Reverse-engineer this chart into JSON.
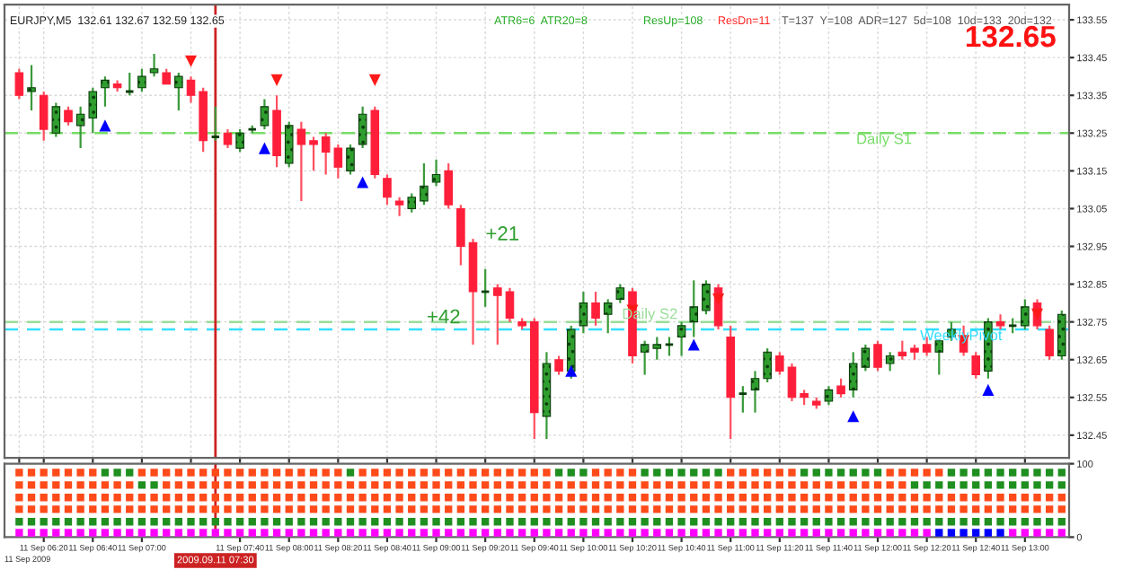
{
  "chart_data": [
    {
      "type": "candlestick",
      "x": [
        "2009-09-11T06:10",
        "2009-09-11T06:15",
        "2009-09-11T06:20",
        "2009-09-11T06:25",
        "2009-09-11T06:30",
        "2009-09-11T06:35",
        "2009-09-11T06:40",
        "2009-09-11T06:45",
        "2009-09-11T06:50",
        "2009-09-11T06:55",
        "2009-09-11T07:00",
        "2009-09-11T07:05",
        "2009-09-11T07:10",
        "2009-09-11T07:15",
        "2009-09-11T07:20",
        "2009-09-11T07:25",
        "2009-09-11T07:30",
        "2009-09-11T07:35",
        "2009-09-11T07:40",
        "2009-09-11T07:45",
        "2009-09-11T07:50",
        "2009-09-11T07:55",
        "2009-09-11T08:00",
        "2009-09-11T08:05",
        "2009-09-11T08:10",
        "2009-09-11T08:15",
        "2009-09-11T08:20",
        "2009-09-11T08:25",
        "2009-09-11T08:30",
        "2009-09-11T08:35",
        "2009-09-11T08:40",
        "2009-09-11T08:45",
        "2009-09-11T08:50",
        "2009-09-11T08:55",
        "2009-09-11T09:00",
        "2009-09-11T09:05",
        "2009-09-11T09:10",
        "2009-09-11T09:15",
        "2009-09-11T09:20",
        "2009-09-11T09:25",
        "2009-09-11T09:30",
        "2009-09-11T09:35",
        "2009-09-11T09:40",
        "2009-09-11T09:45",
        "2009-09-11T09:50",
        "2009-09-11T09:55",
        "2009-09-11T10:00",
        "2009-09-11T10:05",
        "2009-09-11T10:10",
        "2009-09-11T10:15",
        "2009-09-11T10:20",
        "2009-09-11T10:25",
        "2009-09-11T10:30",
        "2009-09-11T10:35",
        "2009-09-11T10:40",
        "2009-09-11T10:45",
        "2009-09-11T10:50",
        "2009-09-11T10:55",
        "2009-09-11T11:00",
        "2009-09-11T11:05",
        "2009-09-11T11:10",
        "2009-09-11T11:15",
        "2009-09-11T11:20",
        "2009-09-11T11:25",
        "2009-09-11T11:30",
        "2009-09-11T11:35",
        "2009-09-11T11:40",
        "2009-09-11T11:45",
        "2009-09-11T11:50",
        "2009-09-11T11:55",
        "2009-09-11T12:00",
        "2009-09-11T12:05",
        "2009-09-11T12:10",
        "2009-09-11T12:15",
        "2009-09-11T12:20",
        "2009-09-11T12:25",
        "2009-09-11T12:30",
        "2009-09-11T12:35",
        "2009-09-11T12:40",
        "2009-09-11T12:45",
        "2009-09-11T12:50",
        "2009-09-11T12:55",
        "2009-09-11T13:00",
        "2009-09-11T13:05",
        "2009-09-11T13:10",
        "2009-09-11T13:15"
      ],
      "ohlc": [
        [
          133.41,
          133.42,
          133.34,
          133.35
        ],
        [
          133.36,
          133.43,
          133.31,
          133.37
        ],
        [
          133.35,
          133.36,
          133.23,
          133.26
        ],
        [
          133.25,
          133.33,
          133.24,
          133.32
        ],
        [
          133.31,
          133.32,
          133.27,
          133.28
        ],
        [
          133.27,
          133.32,
          133.21,
          133.3
        ],
        [
          133.29,
          133.37,
          133.25,
          133.36
        ],
        [
          133.37,
          133.4,
          133.32,
          133.39
        ],
        [
          133.38,
          133.39,
          133.36,
          133.37
        ],
        [
          133.36,
          133.41,
          133.35,
          133.36
        ],
        [
          133.37,
          133.42,
          133.36,
          133.4
        ],
        [
          133.41,
          133.46,
          133.4,
          133.42
        ],
        [
          133.41,
          133.42,
          133.38,
          133.38
        ],
        [
          133.37,
          133.41,
          133.31,
          133.4
        ],
        [
          133.39,
          133.4,
          133.33,
          133.35
        ],
        [
          133.36,
          133.37,
          133.2,
          133.23
        ],
        [
          133.24,
          133.32,
          133.23,
          133.24
        ],
        [
          133.25,
          133.26,
          133.21,
          133.22
        ],
        [
          133.21,
          133.26,
          133.2,
          133.25
        ],
        [
          133.26,
          133.27,
          133.25,
          133.26
        ],
        [
          133.27,
          133.34,
          133.26,
          133.32
        ],
        [
          133.31,
          133.35,
          133.16,
          133.19
        ],
        [
          133.17,
          133.28,
          133.16,
          133.27
        ],
        [
          133.26,
          133.28,
          133.07,
          133.22
        ],
        [
          133.23,
          133.24,
          133.15,
          133.22
        ],
        [
          133.24,
          133.25,
          133.14,
          133.2
        ],
        [
          133.21,
          133.22,
          133.13,
          133.16
        ],
        [
          133.15,
          133.22,
          133.14,
          133.21
        ],
        [
          133.22,
          133.32,
          133.21,
          133.3
        ],
        [
          133.31,
          133.32,
          133.13,
          133.14
        ],
        [
          133.13,
          133.14,
          133.06,
          133.08
        ],
        [
          133.07,
          133.08,
          133.03,
          133.06
        ],
        [
          133.05,
          133.09,
          133.04,
          133.08
        ],
        [
          133.07,
          133.17,
          133.06,
          133.11
        ],
        [
          133.12,
          133.18,
          133.11,
          133.14
        ],
        [
          133.15,
          133.17,
          133.05,
          133.06
        ],
        [
          133.05,
          133.06,
          132.9,
          132.95
        ],
        [
          132.96,
          132.97,
          132.69,
          132.83
        ],
        [
          132.83,
          132.89,
          132.79,
          132.83
        ],
        [
          132.84,
          132.85,
          132.69,
          132.82
        ],
        [
          132.83,
          132.84,
          132.75,
          132.76
        ],
        [
          132.75,
          132.76,
          132.73,
          132.74
        ],
        [
          132.75,
          132.76,
          132.44,
          132.51
        ],
        [
          132.5,
          132.67,
          132.44,
          132.64
        ],
        [
          132.65,
          132.66,
          132.61,
          132.62
        ],
        [
          132.62,
          132.74,
          132.6,
          132.73
        ],
        [
          132.74,
          132.83,
          132.72,
          132.8
        ],
        [
          132.8,
          132.83,
          132.74,
          132.76
        ],
        [
          132.77,
          132.81,
          132.72,
          132.8
        ],
        [
          132.81,
          132.85,
          132.8,
          132.84
        ],
        [
          132.83,
          132.84,
          132.64,
          132.66
        ],
        [
          132.67,
          132.7,
          132.61,
          132.69
        ],
        [
          132.68,
          132.71,
          132.65,
          132.69
        ],
        [
          132.69,
          132.71,
          132.66,
          132.69
        ],
        [
          132.71,
          132.75,
          132.66,
          132.74
        ],
        [
          132.75,
          132.86,
          132.71,
          132.79
        ],
        [
          132.78,
          132.86,
          132.77,
          132.85
        ],
        [
          132.84,
          132.85,
          132.73,
          132.74
        ],
        [
          132.71,
          132.74,
          132.44,
          132.55
        ],
        [
          132.56,
          132.58,
          132.51,
          132.56
        ],
        [
          132.57,
          132.62,
          132.51,
          132.6
        ],
        [
          132.6,
          132.68,
          132.59,
          132.67
        ],
        [
          132.66,
          132.67,
          132.61,
          132.62
        ],
        [
          132.63,
          132.64,
          132.54,
          132.55
        ],
        [
          132.56,
          132.57,
          132.53,
          132.55
        ],
        [
          132.54,
          132.55,
          132.52,
          132.53
        ],
        [
          132.54,
          132.58,
          132.53,
          132.57
        ],
        [
          132.58,
          132.6,
          132.55,
          132.56
        ],
        [
          132.57,
          132.67,
          132.55,
          132.64
        ],
        [
          132.63,
          132.69,
          132.62,
          132.68
        ],
        [
          132.69,
          132.7,
          132.62,
          132.63
        ],
        [
          132.64,
          132.67,
          132.62,
          132.66
        ],
        [
          132.67,
          132.7,
          132.65,
          132.66
        ],
        [
          132.68,
          132.69,
          132.65,
          132.67
        ],
        [
          132.69,
          132.71,
          132.66,
          132.67
        ],
        [
          132.67,
          132.7,
          132.61,
          132.7
        ],
        [
          132.71,
          132.75,
          132.7,
          132.73
        ],
        [
          132.71,
          132.74,
          132.66,
          132.67
        ],
        [
          132.66,
          132.67,
          132.6,
          132.61
        ],
        [
          132.62,
          132.76,
          132.6,
          132.75
        ],
        [
          132.75,
          132.77,
          132.73,
          132.74
        ],
        [
          132.74,
          132.76,
          132.72,
          132.74
        ],
        [
          132.74,
          132.81,
          132.73,
          132.79
        ],
        [
          132.8,
          132.81,
          132.73,
          132.74
        ],
        [
          132.73,
          132.74,
          132.65,
          132.66
        ],
        [
          132.66,
          132.78,
          132.65,
          132.77
        ]
      ],
      "xlim": [
        "2009-09-11T06:04",
        "2009-09-11T13:18"
      ],
      "xticks": [
        {
          "value": "2009-09-11T06:10",
          "label": null
        },
        {
          "value": "2009-09-11T06:20",
          "label": null
        },
        {
          "value": "2009-09-11T06:40",
          "label": null
        },
        {
          "value": "2009-09-11T07:00",
          "label": null
        },
        {
          "value": "2009-09-11T07:20",
          "label": null
        },
        {
          "value": "2009-09-11T07:40",
          "label": null
        },
        {
          "value": "2009-09-11T08:00",
          "label": null
        },
        {
          "value": "2009-09-11T08:20",
          "label": null
        },
        {
          "value": "2009-09-11T08:40",
          "label": null
        },
        {
          "value": "2009-09-11T09:00",
          "label": null
        },
        {
          "value": "2009-09-11T09:20",
          "label": null
        },
        {
          "value": "2009-09-11T09:40",
          "label": null
        },
        {
          "value": "2009-09-11T10:00",
          "label": null
        },
        {
          "value": "2009-09-11T10:20",
          "label": null
        },
        {
          "value": "2009-09-11T10:40",
          "label": null
        },
        {
          "value": "2009-09-11T11:00",
          "label": null
        },
        {
          "value": "2009-09-11T11:20",
          "label": null
        },
        {
          "value": "2009-09-11T11:40",
          "label": null
        },
        {
          "value": "2009-09-11T12:00",
          "label": null
        },
        {
          "value": "2009-09-11T12:20",
          "label": null
        },
        {
          "value": "2009-09-11T12:40",
          "label": null
        },
        {
          "value": "2009-09-11T13:00",
          "label": null
        }
      ],
      "ylim": [
        132.39,
        133.59
      ],
      "yticks": [
        132.45,
        132.55,
        132.65,
        132.75,
        132.85,
        132.95,
        133.05,
        133.15,
        133.25,
        133.35,
        133.45,
        133.55
      ],
      "tick_labels": "y",
      "grid": true,
      "ref_lines": [
        {
          "axis": "y",
          "value": 133.25,
          "label": "Daily S1",
          "color": "#77dd66",
          "line_style": "dashed"
        },
        {
          "axis": "y",
          "value": 132.75,
          "label": "Daily S2",
          "color": "#99dd99",
          "line_style": "dashed"
        },
        {
          "axis": "y",
          "value": 132.73,
          "label": "WeeklyPivot",
          "color": "#33ddff",
          "line_style": "dashed"
        },
        {
          "axis": "x",
          "value": "2009-09-11T07:30",
          "label": null,
          "color": "#cc2222",
          "line_style": "solid"
        }
      ],
      "series": [
        {
          "type": "scatter",
          "marker": "triangle",
          "color": "#0000ff",
          "x": [
            "2009-09-11T06:45",
            "2009-09-11T07:50",
            "2009-09-11T08:30",
            "2009-09-11T09:55",
            "2009-09-11T10:45",
            "2009-09-11T11:50",
            "2009-09-11T12:45"
          ],
          "values": [
            133.27,
            133.21,
            133.12,
            132.62,
            132.69,
            132.5,
            132.57
          ]
        },
        {
          "type": "scatter",
          "marker": "triangle_down",
          "color": "#ff1a1a",
          "x": [
            "2009-09-11T07:20",
            "2009-09-11T07:55",
            "2009-09-11T08:35",
            "2009-09-11T10:20",
            "2009-09-11T10:55",
            "2009-09-11T12:35",
            "2009-09-11T13:05"
          ],
          "values": [
            133.44,
            133.39,
            133.39,
            132.78,
            132.81,
            132.7,
            132.77
          ]
        }
      ],
      "annotations": [
        "EURJPY,M5  132.61 132.67 132.59 132.65",
        "ATR6=6  ATR20=8",
        "ResUp=108",
        "ResDn=11",
        "T=137  Y=108  ADR=127  5d=108  10d=133  20d=132",
        "132.65",
        {
          "text": "+21",
          "x": "2009-09-11T09:15",
          "y": 132.98
        },
        {
          "text": "+42",
          "x": "2009-09-11T09:15",
          "y": 132.76
        }
      ]
    },
    {
      "type": "scatter",
      "x": [
        "2009-09-11T06:10",
        "2009-09-11T06:15",
        "2009-09-11T06:20",
        "2009-09-11T06:25",
        "2009-09-11T06:30",
        "2009-09-11T06:35",
        "2009-09-11T06:40",
        "2009-09-11T06:45",
        "2009-09-11T06:50",
        "2009-09-11T06:55",
        "2009-09-11T07:00",
        "2009-09-11T07:05",
        "2009-09-11T07:10",
        "2009-09-11T07:15",
        "2009-09-11T07:20",
        "2009-09-11T07:25",
        "2009-09-11T07:30",
        "2009-09-11T07:35",
        "2009-09-11T07:40",
        "2009-09-11T07:45",
        "2009-09-11T07:50",
        "2009-09-11T07:55",
        "2009-09-11T08:00",
        "2009-09-11T08:05",
        "2009-09-11T08:10",
        "2009-09-11T08:15",
        "2009-09-11T08:20",
        "2009-09-11T08:25",
        "2009-09-11T08:30",
        "2009-09-11T08:35",
        "2009-09-11T08:40",
        "2009-09-11T08:45",
        "2009-09-11T08:50",
        "2009-09-11T08:55",
        "2009-09-11T09:00",
        "2009-09-11T09:05",
        "2009-09-11T09:10",
        "2009-09-11T09:15",
        "2009-09-11T09:20",
        "2009-09-11T09:25",
        "2009-09-11T09:30",
        "2009-09-11T09:35",
        "2009-09-11T09:40",
        "2009-09-11T09:45",
        "2009-09-11T09:50",
        "2009-09-11T09:55",
        "2009-09-11T10:00",
        "2009-09-11T10:05",
        "2009-09-11T10:10",
        "2009-09-11T10:15",
        "2009-09-11T10:20",
        "2009-09-11T10:25",
        "2009-09-11T10:30",
        "2009-09-11T10:35",
        "2009-09-11T10:40",
        "2009-09-11T10:45",
        "2009-09-11T10:50",
        "2009-09-11T10:55",
        "2009-09-11T11:00",
        "2009-09-11T11:05",
        "2009-09-11T11:10",
        "2009-09-11T11:15",
        "2009-09-11T11:20",
        "2009-09-11T11:25",
        "2009-09-11T11:30",
        "2009-09-11T11:35",
        "2009-09-11T11:40",
        "2009-09-11T11:45",
        "2009-09-11T11:50",
        "2009-09-11T11:55",
        "2009-09-11T12:00",
        "2009-09-11T12:05",
        "2009-09-11T12:10",
        "2009-09-11T12:15",
        "2009-09-11T12:20",
        "2009-09-11T12:25",
        "2009-09-11T12:30",
        "2009-09-11T12:35",
        "2009-09-11T12:40",
        "2009-09-11T12:45",
        "2009-09-11T12:50",
        "2009-09-11T12:55",
        "2009-09-11T13:00",
        "2009-09-11T13:05",
        "2009-09-11T13:10",
        "2009-09-11T13:15"
      ],
      "xlim": [
        "2009-09-11T06:04",
        "2009-09-11T13:18"
      ],
      "annotations": [
        "11 Sep 2009"
      ],
      "xticks": [
        {
          "value": "2009-09-11T06:20",
          "label": "11 Sep 06:20"
        },
        {
          "value": "2009-09-11T06:40",
          "label": "11 Sep 06:40"
        },
        {
          "value": "2009-09-11T07:00",
          "label": "11 Sep 07:00"
        },
        {
          "value": "2009-09-11T07:40",
          "label": "11 Sep 07:40"
        },
        {
          "value": "2009-09-11T08:00",
          "label": "11 Sep 08:00"
        },
        {
          "value": "2009-09-11T08:20",
          "label": "11 Sep 08:20"
        },
        {
          "value": "2009-09-11T08:40",
          "label": "11 Sep 08:40"
        },
        {
          "value": "2009-09-11T09:00",
          "label": "11 Sep 09:00"
        },
        {
          "value": "2009-09-11T09:20",
          "label": "11 Sep 09:20"
        },
        {
          "value": "2009-09-11T09:40",
          "label": "11 Sep 09:40"
        },
        {
          "value": "2009-09-11T10:00",
          "label": "11 Sep 10:00"
        },
        {
          "value": "2009-09-11T10:20",
          "label": "11 Sep 10:20"
        },
        {
          "value": "2009-09-11T10:40",
          "label": "11 Sep 10:40"
        },
        {
          "value": "2009-09-11T11:00",
          "label": "11 Sep 11:00"
        },
        {
          "value": "2009-09-11T11:20",
          "label": "11 Sep 11:20"
        },
        {
          "value": "2009-09-11T11:40",
          "label": "11 Sep 11:40"
        },
        {
          "value": "2009-09-11T12:00",
          "label": "11 Sep 12:00"
        },
        {
          "value": "2009-09-11T12:20",
          "label": "11 Sep 12:20"
        },
        {
          "value": "2009-09-11T12:40",
          "label": "11 Sep 12:40"
        },
        {
          "value": "2009-09-11T13:00",
          "label": "11 Sep 13:00"
        }
      ],
      "ylim": [
        0,
        100
      ],
      "yticks": [
        0,
        100
      ],
      "marker": "square",
      "ref_lines": [
        {
          "axis": "x",
          "value": "2009-09-11T07:30",
          "label": "2009.09.11 07:30",
          "color": "#cc2222",
          "line_style": "solid"
        }
      ],
      "series": [
        {
          "values": [
            88,
            88,
            88,
            88,
            88,
            88,
            88,
            88,
            88,
            88,
            88,
            88,
            88,
            88,
            88,
            88,
            88,
            88,
            88,
            88,
            88,
            88,
            88,
            88,
            88,
            88,
            88,
            88,
            88,
            88,
            88,
            88,
            88,
            88,
            88,
            88,
            88,
            88,
            88,
            88,
            88,
            88,
            88,
            88,
            88,
            88,
            88,
            88,
            88,
            88,
            88,
            88,
            88,
            88,
            88,
            88,
            88,
            88,
            88,
            88,
            88,
            88,
            88,
            88,
            88,
            88,
            88,
            88,
            88,
            88,
            88,
            88,
            88,
            88,
            88,
            88,
            88,
            88,
            88,
            88,
            88,
            88,
            88,
            88,
            88,
            88
          ],
          "colors": [
            "#ff4a1a",
            "#ff4a1a",
            "#ff4a1a",
            "#ff4a1a",
            "#ff4a1a",
            "#ff4a1a",
            "#ff4a1a",
            "#1f8f1f",
            "#1f8f1f",
            "#1f8f1f",
            "#ff4a1a",
            "#ff4a1a",
            "#ff4a1a",
            "#ff4a1a",
            "#ff4a1a",
            "#ff4a1a",
            "#ff4a1a",
            "#ff4a1a",
            "#ff4a1a",
            "#ff4a1a",
            "#ff4a1a",
            "#ff4a1a",
            "#ff4a1a",
            "#ff4a1a",
            "#ff4a1a",
            "#ff4a1a",
            "#ff4a1a",
            "#1f8f1f",
            "#ff4a1a",
            "#ff4a1a",
            "#ff4a1a",
            "#ff4a1a",
            "#ff4a1a",
            "#ff4a1a",
            "#ff4a1a",
            "#ff4a1a",
            "#ff4a1a",
            "#ff4a1a",
            "#ff4a1a",
            "#ff4a1a",
            "#ff4a1a",
            "#ff4a1a",
            "#ff4a1a",
            "#ff4a1a",
            "#1f8f1f",
            "#1f8f1f",
            "#1f8f1f",
            "#ff4a1a",
            "#ff4a1a",
            "#ff4a1a",
            "#ff4a1a",
            "#1f8f1f",
            "#1f8f1f",
            "#1f8f1f",
            "#1f8f1f",
            "#1f8f1f",
            "#1f8f1f",
            "#1f8f1f",
            "#ff4a1a",
            "#ff4a1a",
            "#ff4a1a",
            "#ff4a1a",
            "#ff4a1a",
            "#ff4a1a",
            "#1f8f1f",
            "#1f8f1f",
            "#1f8f1f",
            "#1f8f1f",
            "#1f8f1f",
            "#1f8f1f",
            "#1f8f1f",
            "#ff4a1a",
            "#ff4a1a",
            "#ff4a1a",
            "#ff4a1a",
            "#ff4a1a",
            "#1f8f1f",
            "#1f8f1f",
            "#1f8f1f",
            "#1f8f1f",
            "#1f8f1f",
            "#1f8f1f",
            "#1f8f1f",
            "#1f8f1f",
            "#1f8f1f",
            "#1f8f1f"
          ]
        },
        {
          "values": [
            71,
            71,
            71,
            71,
            71,
            71,
            71,
            71,
            71,
            71,
            71,
            71,
            71,
            71,
            71,
            71,
            71,
            71,
            71,
            71,
            71,
            71,
            71,
            71,
            71,
            71,
            71,
            71,
            71,
            71,
            71,
            71,
            71,
            71,
            71,
            71,
            71,
            71,
            71,
            71,
            71,
            71,
            71,
            71,
            71,
            71,
            71,
            71,
            71,
            71,
            71,
            71,
            71,
            71,
            71,
            71,
            71,
            71,
            71,
            71,
            71,
            71,
            71,
            71,
            71,
            71,
            71,
            71,
            71,
            71,
            71,
            71,
            71,
            71,
            71,
            71,
            71,
            71,
            71,
            71,
            71,
            71,
            71,
            71,
            71,
            71
          ],
          "colors": [
            "#ff4a1a",
            "#ff4a1a",
            "#ff4a1a",
            "#ff4a1a",
            "#ff4a1a",
            "#ff4a1a",
            "#ff4a1a",
            "#ff4a1a",
            "#ff4a1a",
            "#ff4a1a",
            "#1f8f1f",
            "#1f8f1f",
            "#ff4a1a",
            "#ff4a1a",
            "#ff4a1a",
            "#ff4a1a",
            "#ff4a1a",
            "#ff4a1a",
            "#ff4a1a",
            "#ff4a1a",
            "#ff4a1a",
            "#ff4a1a",
            "#ff4a1a",
            "#ff4a1a",
            "#ff4a1a",
            "#ff4a1a",
            "#ff4a1a",
            "#ff4a1a",
            "#ff4a1a",
            "#ff4a1a",
            "#ff4a1a",
            "#ff4a1a",
            "#ff4a1a",
            "#ff4a1a",
            "#ff4a1a",
            "#ff4a1a",
            "#ff4a1a",
            "#ff4a1a",
            "#ff4a1a",
            "#ff4a1a",
            "#ff4a1a",
            "#ff4a1a",
            "#ff4a1a",
            "#ff4a1a",
            "#ff4a1a",
            "#ff4a1a",
            "#ff4a1a",
            "#ff4a1a",
            "#ff4a1a",
            "#ff4a1a",
            "#ff4a1a",
            "#ff4a1a",
            "#ff4a1a",
            "#ff4a1a",
            "#ff4a1a",
            "#ff4a1a",
            "#ff4a1a",
            "#ff4a1a",
            "#ff4a1a",
            "#ff4a1a",
            "#ff4a1a",
            "#ff4a1a",
            "#ff4a1a",
            "#ff4a1a",
            "#ff4a1a",
            "#ff4a1a",
            "#ff4a1a",
            "#ff4a1a",
            "#ff4a1a",
            "#ff4a1a",
            "#ff4a1a",
            "#ff4a1a",
            "#ff4a1a",
            "#1f8f1f",
            "#1f8f1f",
            "#1f8f1f",
            "#1f8f1f",
            "#1f8f1f",
            "#1f8f1f",
            "#1f8f1f",
            "#1f8f1f",
            "#1f8f1f",
            "#1f8f1f",
            "#1f8f1f",
            "#1f8f1f",
            "#1f8f1f"
          ]
        },
        {
          "color": "#ff4a1a",
          "values": [
            54,
            54,
            54,
            54,
            54,
            54,
            54,
            54,
            54,
            54,
            54,
            54,
            54,
            54,
            54,
            54,
            54,
            54,
            54,
            54,
            54,
            54,
            54,
            54,
            54,
            54,
            54,
            54,
            54,
            54,
            54,
            54,
            54,
            54,
            54,
            54,
            54,
            54,
            54,
            54,
            54,
            54,
            54,
            54,
            54,
            54,
            54,
            54,
            54,
            54,
            54,
            54,
            54,
            54,
            54,
            54,
            54,
            54,
            54,
            54,
            54,
            54,
            54,
            54,
            54,
            54,
            54,
            54,
            54,
            54,
            54,
            54,
            54,
            54,
            54,
            54,
            54,
            54,
            54,
            54,
            54,
            54,
            54,
            54,
            54,
            54
          ]
        },
        {
          "color": "#ff4a1a",
          "values": [
            38,
            38,
            38,
            38,
            38,
            38,
            38,
            38,
            38,
            38,
            38,
            38,
            38,
            38,
            38,
            38,
            38,
            38,
            38,
            38,
            38,
            38,
            38,
            38,
            38,
            38,
            38,
            38,
            38,
            38,
            38,
            38,
            38,
            38,
            38,
            38,
            38,
            38,
            38,
            38,
            38,
            38,
            38,
            38,
            38,
            38,
            38,
            38,
            38,
            38,
            38,
            38,
            38,
            38,
            38,
            38,
            38,
            38,
            38,
            38,
            38,
            38,
            38,
            38,
            38,
            38,
            38,
            38,
            38,
            38,
            38,
            38,
            38,
            38,
            38,
            38,
            38,
            38,
            38,
            38,
            38,
            38,
            38,
            38,
            38,
            38
          ]
        },
        {
          "color": "#1f8f1f",
          "values": [
            21,
            21,
            21,
            21,
            21,
            21,
            21,
            21,
            21,
            21,
            21,
            21,
            21,
            21,
            21,
            21,
            21,
            21,
            21,
            21,
            21,
            21,
            21,
            21,
            21,
            21,
            21,
            21,
            21,
            21,
            21,
            21,
            21,
            21,
            21,
            21,
            21,
            21,
            21,
            21,
            21,
            21,
            21,
            21,
            21,
            21,
            21,
            21,
            21,
            21,
            21,
            21,
            21,
            21,
            21,
            21,
            21,
            21,
            21,
            21,
            21,
            21,
            21,
            21,
            21,
            21,
            21,
            21,
            21,
            21,
            21,
            21,
            21,
            21,
            21,
            21,
            21,
            21,
            21,
            21,
            21,
            21,
            21,
            21,
            21,
            21
          ]
        },
        {
          "values": [
            6,
            6,
            6,
            6,
            6,
            6,
            6,
            6,
            6,
            6,
            6,
            6,
            6,
            6,
            6,
            6,
            6,
            6,
            6,
            6,
            6,
            6,
            6,
            6,
            6,
            6,
            6,
            6,
            6,
            6,
            6,
            6,
            6,
            6,
            6,
            6,
            6,
            6,
            6,
            6,
            6,
            6,
            6,
            6,
            6,
            6,
            6,
            6,
            6,
            6,
            6,
            6,
            6,
            6,
            6,
            6,
            6,
            6,
            6,
            6,
            6,
            6,
            6,
            6,
            6,
            6,
            6,
            6,
            6,
            6,
            6,
            6,
            6,
            6,
            6,
            6,
            6,
            6,
            6,
            6,
            6,
            6,
            6,
            6,
            6,
            6
          ],
          "colors": [
            "#ff00ff",
            "#ff00ff",
            "#ff00ff",
            "#ff00ff",
            "#ff00ff",
            "#ff00ff",
            "#ff00ff",
            "#ff00ff",
            "#ff00ff",
            "#ff00ff",
            "#ff00ff",
            "#ff00ff",
            "#ff00ff",
            "#ff00ff",
            "#ff00ff",
            "#ff00ff",
            "#ff00ff",
            "#ff00ff",
            "#ff00ff",
            "#ff00ff",
            "#ff00ff",
            "#ff00ff",
            "#ff00ff",
            "#ff00ff",
            "#ff00ff",
            "#ff00ff",
            "#ff00ff",
            "#ff00ff",
            "#ff00ff",
            "#ff00ff",
            "#ff00ff",
            "#ff00ff",
            "#ff00ff",
            "#ff00ff",
            "#ff00ff",
            "#ff00ff",
            "#ff00ff",
            "#ff00ff",
            "#ff00ff",
            "#ff00ff",
            "#ff00ff",
            "#ff00ff",
            "#ff00ff",
            "#ff00ff",
            "#ff00ff",
            "#ff00ff",
            "#ff00ff",
            "#ff00ff",
            "#ff00ff",
            "#ff00ff",
            "#ff00ff",
            "#ff00ff",
            "#ff00ff",
            "#ff00ff",
            "#ff00ff",
            "#ff00ff",
            "#ff00ff",
            "#ff00ff",
            "#ff00ff",
            "#ff00ff",
            "#ff00ff",
            "#ff00ff",
            "#ff00ff",
            "#ff00ff",
            "#ff00ff",
            "#ff00ff",
            "#ff00ff",
            "#ff00ff",
            "#ff00ff",
            "#ff00ff",
            "#ff00ff",
            "#ff00ff",
            "#ff00ff",
            "#ff00ff",
            "#ff00ff",
            "#0000ff",
            "#0000ff",
            "#0000ff",
            "#0000ff",
            "#0000ff",
            "#0000ff",
            "#ff00ff",
            "#ff00ff",
            "#ff00ff",
            "#ff00ff",
            "#ff00ff"
          ]
        }
      ]
    }
  ]
}
